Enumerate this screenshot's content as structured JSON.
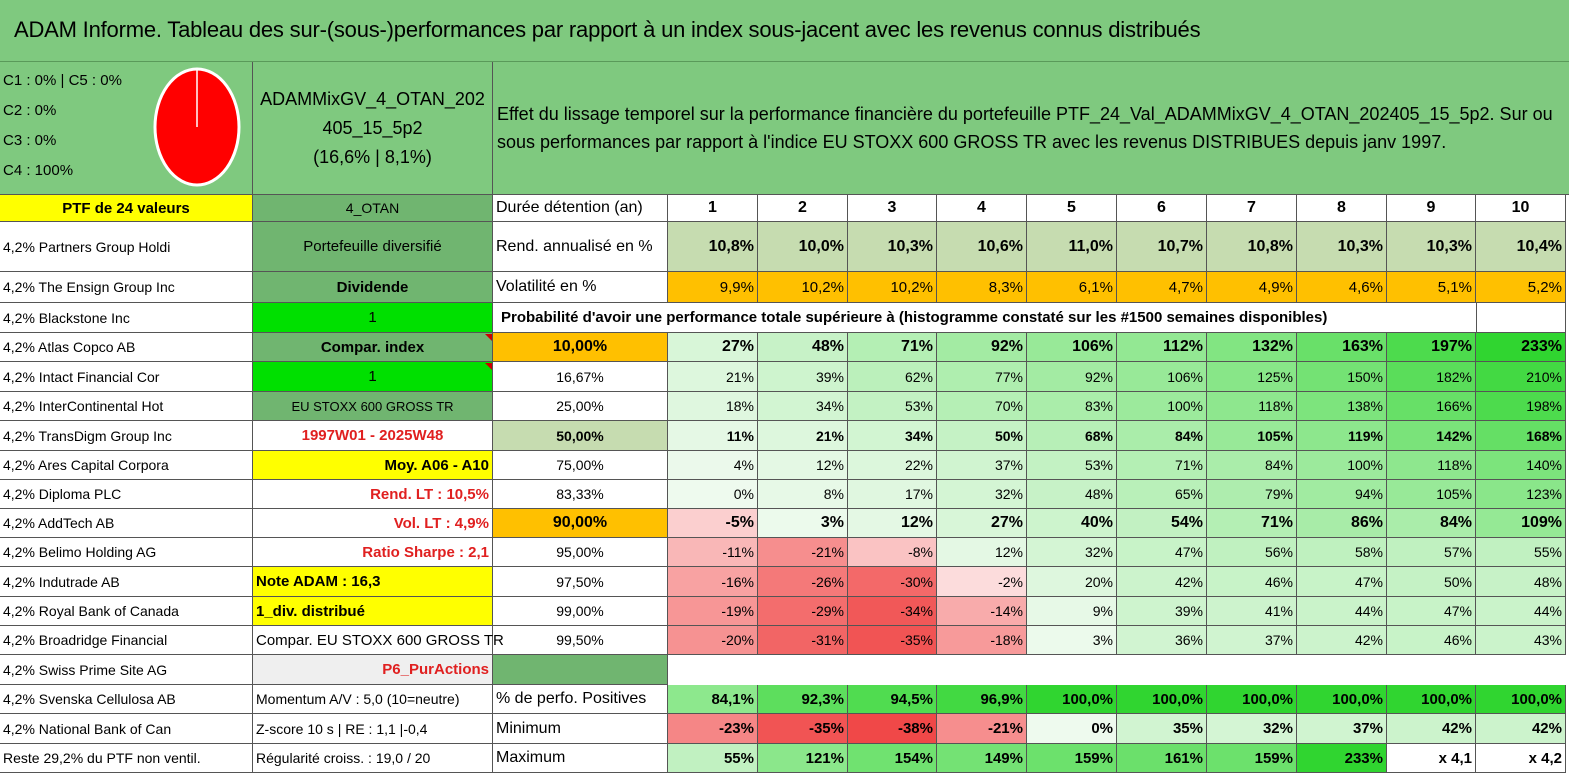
{
  "title": "ADAM Informe. Tableau des sur-(sous-)performances par rapport à un index sous-jacent avec les revenus connus distribués",
  "header": {
    "allocation": [
      "C1 : 0% | C5 : 0%",
      "C2 : 0%",
      "C3 : 0%",
      "C4 : 100%"
    ],
    "pie_share": 1.0,
    "pie_color": "#ff0000",
    "portfolio_line1": "ADAMMixGV_4_OTAN_202",
    "portfolio_line2": "405_15_5p2",
    "portfolio_line3": "(16,6% | 8,1%)",
    "description": "Effet du lissage temporel sur la performance financière du portefeuille PTF_24_Val_ADAMMixGV_4_OTAN_202405_15_5p2. Sur ou sous performances par rapport à l'indice EU STOXX 600 GROSS TR avec les revenus DISTRIBUES depuis janv 1997."
  },
  "holdings_header": "PTF de 24 valeurs",
  "holdings": [
    "4,2% Partners Group Holdi",
    "4,2% The Ensign Group Inc",
    "4,2% Blackstone Inc",
    "4,2% Atlas Copco AB",
    "4,2% Intact Financial Cor",
    "4,2% InterContinental Hot",
    "4,2% TransDigm Group Inc",
    "4,2% Ares Capital Corpora",
    "4,2% Diploma PLC",
    "4,2% AddTech AB",
    "4,2% Belimo Holding AG",
    "4,2% Indutrade AB",
    "4,2% Royal Bank of Canada",
    "4,2% Broadridge Financial",
    "4,2% Swiss Prime Site AG",
    "4,2% Svenska Cellulosa AB",
    "4,2% National Bank of Can",
    "Reste 29,2% du PTF non ventil."
  ],
  "info": [
    "4_OTAN",
    "Portefeuille diversifié",
    "Dividende",
    "1",
    "Compar. index",
    "1",
    "EU STOXX 600 GROSS TR",
    "1997W01 - 2025W48",
    "Moy. A06 - A10",
    "Rend. LT : 10,5%",
    "Vol. LT : 4,9%",
    "Ratio Sharpe : 2,1",
    "Note ADAM : 16,3",
    "1_div. distribué",
    "Compar. EU STOXX 600 GROSS TR",
    "P6_PurActions",
    "Momentum A/V : 5,0 (10=neutre)",
    "Z-score 10 s | RE : 1,1 |-0,4",
    "Régularité croiss. : 19,0 / 20"
  ],
  "stats": {
    "duration_label": "Durée détention (an)",
    "years": [
      "1",
      "2",
      "3",
      "4",
      "5",
      "6",
      "7",
      "8",
      "9",
      "10"
    ],
    "return_label": "Rend. annualisé en %",
    "returns": [
      "10,8%",
      "10,0%",
      "10,3%",
      "10,6%",
      "11,0%",
      "10,7%",
      "10,8%",
      "10,3%",
      "10,3%",
      "10,4%"
    ],
    "volatility_label": "Volatilité en %",
    "volatility": [
      "9,9%",
      "10,2%",
      "10,2%",
      "8,3%",
      "6,1%",
      "4,7%",
      "4,9%",
      "4,6%",
      "5,1%",
      "5,2%"
    ],
    "probability_label": "Probabilité d'avoir une performance totale supérieure à (histogramme constaté sur les #1500 semaines disponibles)"
  },
  "prob_rows": [
    {
      "p": "10,00%",
      "v": [
        "27%",
        "48%",
        "71%",
        "92%",
        "106%",
        "112%",
        "132%",
        "163%",
        "197%",
        "233%"
      ],
      "n": [
        27,
        48,
        71,
        92,
        106,
        112,
        132,
        163,
        197,
        233
      ],
      "bold": true
    },
    {
      "p": "16,67%",
      "v": [
        "21%",
        "39%",
        "62%",
        "77%",
        "92%",
        "106%",
        "125%",
        "150%",
        "182%",
        "210%"
      ],
      "n": [
        21,
        39,
        62,
        77,
        92,
        106,
        125,
        150,
        182,
        210
      ],
      "bold": false
    },
    {
      "p": "25,00%",
      "v": [
        "18%",
        "34%",
        "53%",
        "70%",
        "83%",
        "100%",
        "118%",
        "138%",
        "166%",
        "198%"
      ],
      "n": [
        18,
        34,
        53,
        70,
        83,
        100,
        118,
        138,
        166,
        198
      ],
      "bold": false
    },
    {
      "p": "50,00%",
      "v": [
        "11%",
        "21%",
        "34%",
        "50%",
        "68%",
        "84%",
        "105%",
        "119%",
        "142%",
        "168%"
      ],
      "n": [
        11,
        21,
        34,
        50,
        68,
        84,
        105,
        119,
        142,
        168
      ],
      "bold": true
    },
    {
      "p": "75,00%",
      "v": [
        "4%",
        "12%",
        "22%",
        "37%",
        "53%",
        "71%",
        "84%",
        "100%",
        "118%",
        "140%"
      ],
      "n": [
        4,
        12,
        22,
        37,
        53,
        71,
        84,
        100,
        118,
        140
      ],
      "bold": false
    },
    {
      "p": "83,33%",
      "v": [
        "0%",
        "8%",
        "17%",
        "32%",
        "48%",
        "65%",
        "79%",
        "94%",
        "105%",
        "123%"
      ],
      "n": [
        0,
        8,
        17,
        32,
        48,
        65,
        79,
        94,
        105,
        123
      ],
      "bold": false
    },
    {
      "p": "90,00%",
      "v": [
        "-5%",
        "3%",
        "12%",
        "27%",
        "40%",
        "54%",
        "71%",
        "86%",
        "84%",
        "109%"
      ],
      "n": [
        -5,
        3,
        12,
        27,
        40,
        54,
        71,
        86,
        84,
        109
      ],
      "bold": true
    },
    {
      "p": "95,00%",
      "v": [
        "-11%",
        "-21%",
        "-8%",
        "12%",
        "32%",
        "47%",
        "56%",
        "58%",
        "57%",
        "55%"
      ],
      "n": [
        -11,
        -21,
        -8,
        12,
        32,
        47,
        56,
        58,
        57,
        55
      ],
      "bold": false
    },
    {
      "p": "97,50%",
      "v": [
        "-16%",
        "-26%",
        "-30%",
        "-2%",
        "20%",
        "42%",
        "46%",
        "47%",
        "50%",
        "48%"
      ],
      "n": [
        -16,
        -26,
        -30,
        -2,
        20,
        42,
        46,
        47,
        50,
        48
      ],
      "bold": false
    },
    {
      "p": "99,00%",
      "v": [
        "-19%",
        "-29%",
        "-34%",
        "-14%",
        "9%",
        "39%",
        "41%",
        "44%",
        "47%",
        "44%"
      ],
      "n": [
        -19,
        -29,
        -34,
        -14,
        9,
        39,
        41,
        44,
        47,
        44
      ],
      "bold": false
    },
    {
      "p": "99,50%",
      "v": [
        "-20%",
        "-31%",
        "-35%",
        "-18%",
        "3%",
        "36%",
        "37%",
        "42%",
        "46%",
        "43%"
      ],
      "n": [
        -20,
        -31,
        -35,
        -18,
        3,
        36,
        37,
        42,
        46,
        43
      ],
      "bold": false
    }
  ],
  "summary": [
    {
      "label": "% de perfo. Positives",
      "v": [
        "84,1%",
        "92,3%",
        "94,5%",
        "96,9%",
        "100,0%",
        "100,0%",
        "100,0%",
        "100,0%",
        "100,0%",
        "100,0%"
      ],
      "n": [
        84.1,
        92.3,
        94.5,
        96.9,
        100,
        100,
        100,
        100,
        100,
        100
      ]
    },
    {
      "label": "Minimum",
      "v": [
        "-23%",
        "-35%",
        "-38%",
        "-21%",
        "0%",
        "35%",
        "32%",
        "37%",
        "42%",
        "42%"
      ],
      "n": [
        -23,
        -35,
        -38,
        -21,
        0,
        35,
        32,
        37,
        42,
        42
      ]
    },
    {
      "label": "Maximum",
      "v": [
        "55%",
        "121%",
        "154%",
        "149%",
        "159%",
        "161%",
        "159%",
        "233%",
        "x 4,1",
        "x 4,2"
      ],
      "n": [
        55,
        121,
        154,
        149,
        159,
        161,
        159,
        233,
        null,
        null
      ]
    }
  ],
  "colors": {
    "header_green": "#7fc97f",
    "yellow": "#ffff00",
    "orange": "#ffc000",
    "bright_green": "#00e000",
    "mid_green": "#70b570",
    "pale_olive": "#c6dcb0",
    "red_text": "#e02020"
  }
}
